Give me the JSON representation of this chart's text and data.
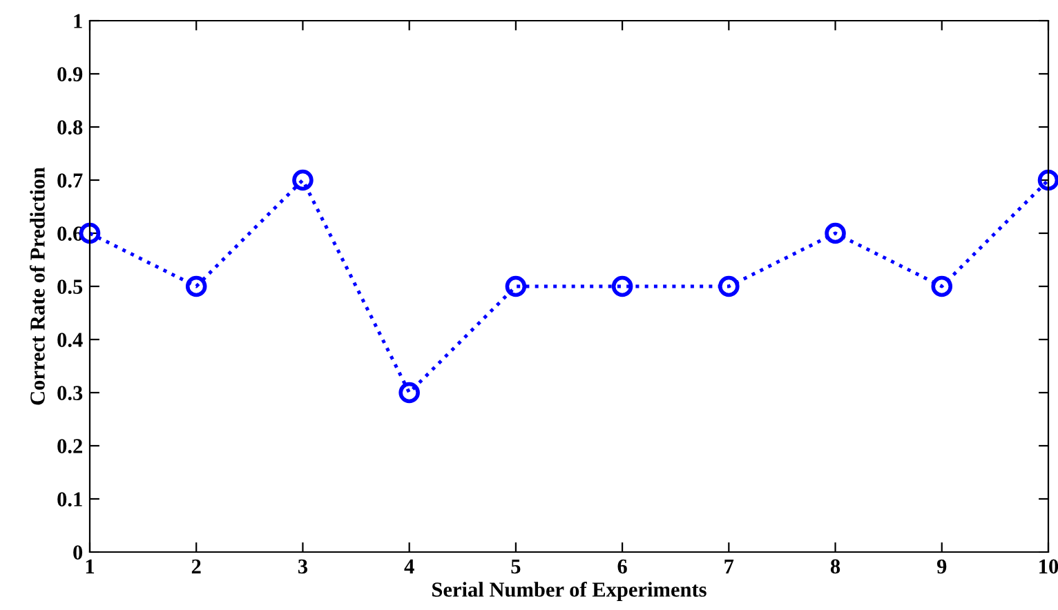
{
  "chart_data": {
    "type": "line",
    "xlabel": "Serial Number of Experiments",
    "ylabel": "Correct Rate of Prediction",
    "x": [
      1,
      2,
      3,
      4,
      5,
      6,
      7,
      8,
      9,
      10
    ],
    "series": [
      {
        "color": "#0000ff",
        "values": [
          0.6,
          0.5,
          0.7,
          0.3,
          0.5,
          0.5,
          0.5,
          0.6,
          0.5,
          0.7
        ]
      }
    ],
    "xlim": [
      1,
      10
    ],
    "xticks": [
      1,
      2,
      3,
      4,
      5,
      6,
      7,
      8,
      9,
      10
    ],
    "ylim": [
      0,
      1
    ],
    "yticks": [
      0,
      0.1,
      0.2,
      0.3,
      0.4,
      0.5,
      0.6,
      0.7,
      0.8,
      0.9,
      1
    ],
    "grid": false,
    "legend": false,
    "marker": "circle",
    "line_style": "dotted"
  }
}
